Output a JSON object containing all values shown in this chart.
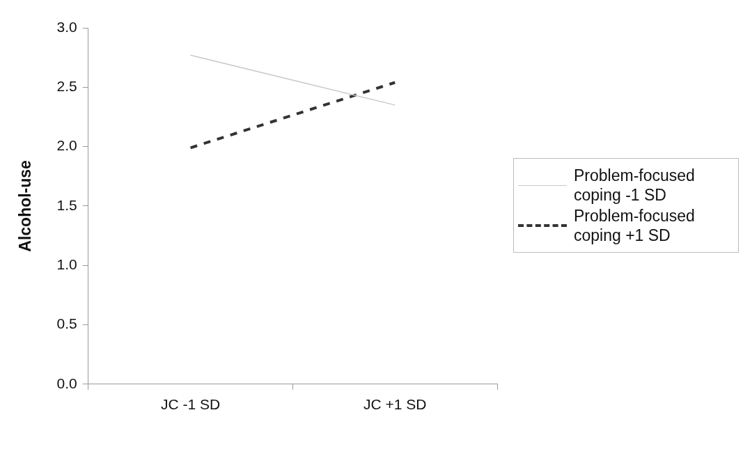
{
  "chart_data": {
    "type": "line",
    "ylabel": "Alcohol-use",
    "categories": [
      "JC -1 SD",
      "JC +1 SD"
    ],
    "series": [
      {
        "name": "Problem-focused coping -1 SD",
        "color": "#c8c8c8",
        "values": [
          2.77,
          2.35
        ],
        "line_style": "solid"
      },
      {
        "name": "Problem-focused coping +1 SD",
        "color": "#333333",
        "values": [
          1.99,
          2.54
        ],
        "line_style": "dashed"
      }
    ],
    "ylim": [
      0,
      3
    ],
    "yticks": [
      {
        "value": 0,
        "label": "0.0"
      },
      {
        "value": 0.5,
        "label": "0.5"
      },
      {
        "value": 1,
        "label": "1.0"
      },
      {
        "value": 1.5,
        "label": "1.5"
      },
      {
        "value": 2,
        "label": "2.0"
      },
      {
        "value": 2.5,
        "label": "2.5"
      },
      {
        "value": 3,
        "label": "3.0"
      }
    ],
    "grid": false,
    "legend": "right",
    "marker": "none"
  }
}
